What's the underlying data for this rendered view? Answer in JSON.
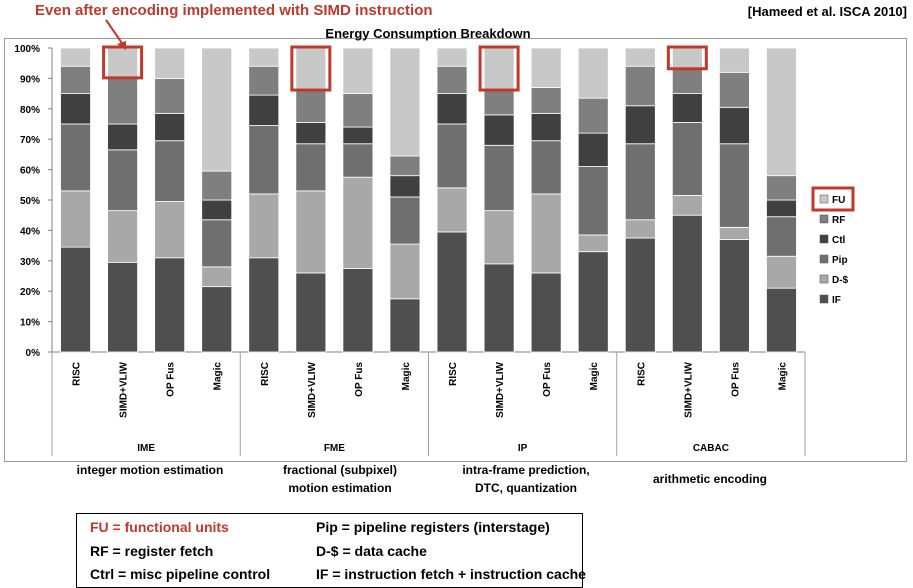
{
  "annotation_text": "Even after encoding implemented with SIMD instruction",
  "citation": "[Hameed et al. ISCA 2010]",
  "colors": {
    "FU": "#c8c8c8",
    "RF": "#7f7f7f",
    "Ctl": "#404040",
    "Pip": "#6f6f6f",
    "D-$": "#a8a8a8",
    "IF": "#4f4f4f",
    "highlight": "#c0392b"
  },
  "chart_data": {
    "type": "bar",
    "stacked": true,
    "title": "Energy Consumption Breakdown",
    "ylim": [
      0,
      100
    ],
    "y_ticks": [
      "0%",
      "10%",
      "20%",
      "30%",
      "40%",
      "50%",
      "60%",
      "70%",
      "80%",
      "90%",
      "100%"
    ],
    "grid": false,
    "legend_position": "right",
    "groups": [
      {
        "name": "IME",
        "categories": [
          "RISC",
          "SIMD+VLIW",
          "OP Fus",
          "Magic"
        ]
      },
      {
        "name": "FME",
        "categories": [
          "RISC",
          "SIMD+VLIW",
          "OP Fus",
          "Magic"
        ]
      },
      {
        "name": "IP",
        "categories": [
          "RISC",
          "SIMD+VLIW",
          "OP Fus",
          "Magic"
        ]
      },
      {
        "name": "CABAC",
        "categories": [
          "RISC",
          "SIMD+VLIW",
          "OP Fus",
          "Magic"
        ]
      }
    ],
    "series": [
      {
        "name": "IF",
        "values": [
          34.5,
          29.5,
          31,
          21.5,
          31,
          26,
          27.5,
          17.5,
          39.5,
          29,
          26,
          33,
          37.5,
          45,
          37,
          21
        ]
      },
      {
        "name": "D-$",
        "values": [
          18.5,
          17,
          18.5,
          6.5,
          21,
          27,
          30,
          18,
          14.5,
          17.5,
          26,
          5.5,
          6,
          6.5,
          4,
          10.5
        ]
      },
      {
        "name": "Pip",
        "values": [
          22,
          20,
          20,
          15.5,
          22.5,
          15.5,
          11,
          15.5,
          21,
          21.5,
          17.5,
          22.5,
          25,
          24,
          27.5,
          13
        ]
      },
      {
        "name": "Ctl",
        "values": [
          10,
          8.5,
          9,
          6.5,
          10,
          7,
          5.5,
          7,
          10,
          10,
          9,
          11,
          12.5,
          9.5,
          12,
          5.5
        ]
      },
      {
        "name": "RF",
        "values": [
          9,
          15.5,
          11.5,
          9.5,
          9.5,
          11,
          11,
          6.5,
          9,
          8.5,
          8.5,
          11.5,
          13,
          8.5,
          11.5,
          8
        ]
      },
      {
        "name": "FU",
        "values": [
          6,
          9.5,
          10,
          40.5,
          6,
          13.5,
          15,
          35.5,
          6,
          13.5,
          13,
          16.5,
          6,
          6.5,
          8,
          42
        ]
      }
    ],
    "highlighted_bars": [
      "IME/SIMD+VLIW",
      "FME/SIMD+VLIW",
      "IP/SIMD+VLIW",
      "CABAC/SIMD+VLIW"
    ],
    "highlighted_legend": "FU"
  },
  "group_descriptions": [
    {
      "lines": [
        "integer motion estimation"
      ]
    },
    {
      "lines": [
        "fractional (subpixel)",
        "motion estimation"
      ]
    },
    {
      "lines": [
        "intra-frame prediction,",
        "DTC, quantization"
      ]
    },
    {
      "lines": [
        "arithmetic encoding"
      ]
    }
  ],
  "key": [
    {
      "text": "FU = functional units",
      "highlight": true
    },
    {
      "text": "RF = register fetch",
      "highlight": false
    },
    {
      "text": "Ctrl = misc pipeline control",
      "highlight": false
    },
    {
      "text": "Pip = pipeline registers (interstage)",
      "highlight": false
    },
    {
      "text": "D-$ = data cache",
      "highlight": false
    },
    {
      "text": "IF = instruction fetch + instruction cache",
      "highlight": false
    }
  ]
}
